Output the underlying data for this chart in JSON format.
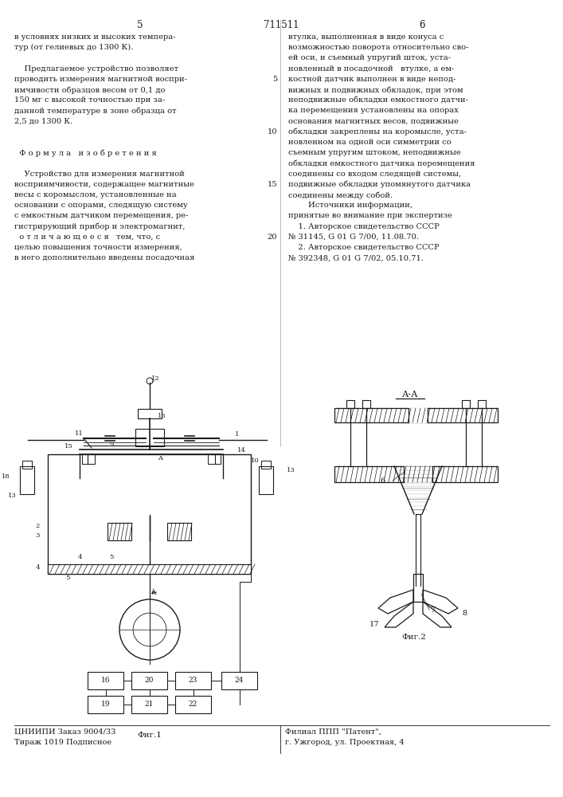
{
  "patent_number": "711511",
  "page_left": "5",
  "page_right": "6",
  "bg_color": "#ffffff",
  "text_color": "#1a1a1a",
  "col_left_lines": [
    "в условиях низких и высоких темпера-",
    "тур (от гелиевых до 1300 К).",
    "",
    "    Предлагаемое устройство позволяет",
    "проводить измерения магнитной воспри-",
    "имчивости образцов весом от 0,1 до",
    "150 мг с высокой точностью при за-",
    "данной температуре в зоне образца от",
    "2,5 до 1300 К.",
    "",
    "",
    "  Ф о р м у л а   и з о б р е т е н и я",
    "",
    "    Устройство для измерения магнитной",
    "восприимчивости, содержащее магнитные",
    "весы с коромыслом, установленные на",
    "основании с опорами, следящую систему",
    "с емкостным датчиком перемещения, ре-",
    "гистрирующий прибор и электромагнит,",
    "  о т л и ч а ю щ е е с я   тем, что, с",
    "целью повышения точности измерения,",
    "в него дополнительно введены посадочная"
  ],
  "col_right_lines": [
    "втулка, выполненная в виде конуса с",
    "возможностью поворота относительно сво-",
    "ей оси, и съемный упругий шток, уста-",
    "новленный в посадочной   втулке, а ем-",
    "костной датчик выполнен в виде непод-",
    "вижных и подвижных обкладок, при этом",
    "неподвижные обкладки емкостного датчи-",
    "ка перемещения установлены на опорах",
    "основания магнитных весов, подвижные",
    "обкладки закреплены на коромысле, уста-",
    "новленном на одной оси симметрии со",
    "съемным упругим штоком, неподвижные",
    "обкладки емкостного датчика перемещения",
    "соединены со входом следящей системы,",
    "подвижные обкладки упомянутого датчика",
    "соединены между собой.",
    "        Источники информации,",
    "принятые во внимание при экспертизе",
    "    1. Авторское свидетельство СССР",
    "№ 31145, G 01 G 7/00, 11.08.70.",
    "    2. Авторское свидетельство СССР",
    "№ 392348, G 01 G 7/02, 05.10.71."
  ],
  "right_line_number_positions": {
    "4": "5",
    "9": "10",
    "14": "15",
    "19": "20"
  },
  "bottom_left_text": [
    "ЦНИИПИ Заказ 9004/33",
    "Тираж 1019 Подписное"
  ],
  "bottom_right_text": [
    "Филиал ППП \"Патент\",",
    "г. Ужгород, ул. Проектная, 4"
  ],
  "fig1_label": "Фиг.1",
  "fig2_label": "Фиг.2",
  "aa_label": "А-А"
}
